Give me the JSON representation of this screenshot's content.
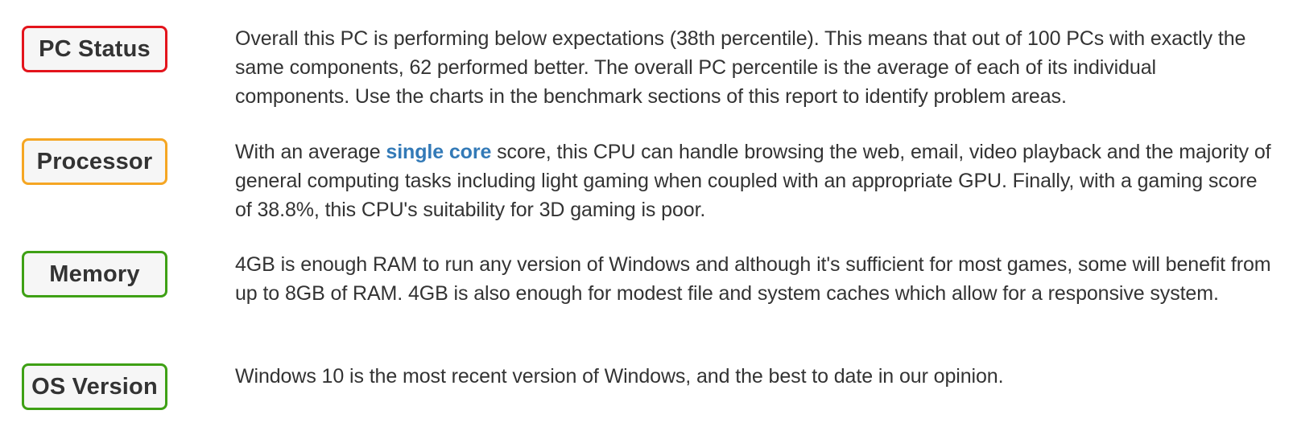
{
  "rows": [
    {
      "label": "PC Status",
      "border_color": "#e3141c",
      "text": "Overall this PC is performing below expectations (38th percentile). This means that out of 100 PCs with exactly the same components, 62 performed better. The overall PC percentile is the average of each of its individual components. Use the charts in the benchmark sections of this report to identify problem areas."
    },
    {
      "label": "Processor",
      "border_color": "#f5a623",
      "text_before": "With an average ",
      "link_text": "single core",
      "text_after": " score, this CPU can handle browsing the web, email, video playback and the majority of general computing tasks including light gaming when coupled with an appropriate GPU. Finally, with a gaming score of 38.8%, this CPU's suitability for 3D gaming is poor."
    },
    {
      "label": "Memory",
      "border_color": "#3ea015",
      "text": "4GB is enough RAM to run any version of Windows and although it's sufficient for most games, some will benefit from up to 8GB of RAM. 4GB is also enough for modest file and system caches which allow for a responsive system."
    },
    {
      "label": "OS Version",
      "border_color": "#3ea015",
      "text": "Windows 10 is the most recent version of Windows, and the best to date in our opinion."
    }
  ]
}
